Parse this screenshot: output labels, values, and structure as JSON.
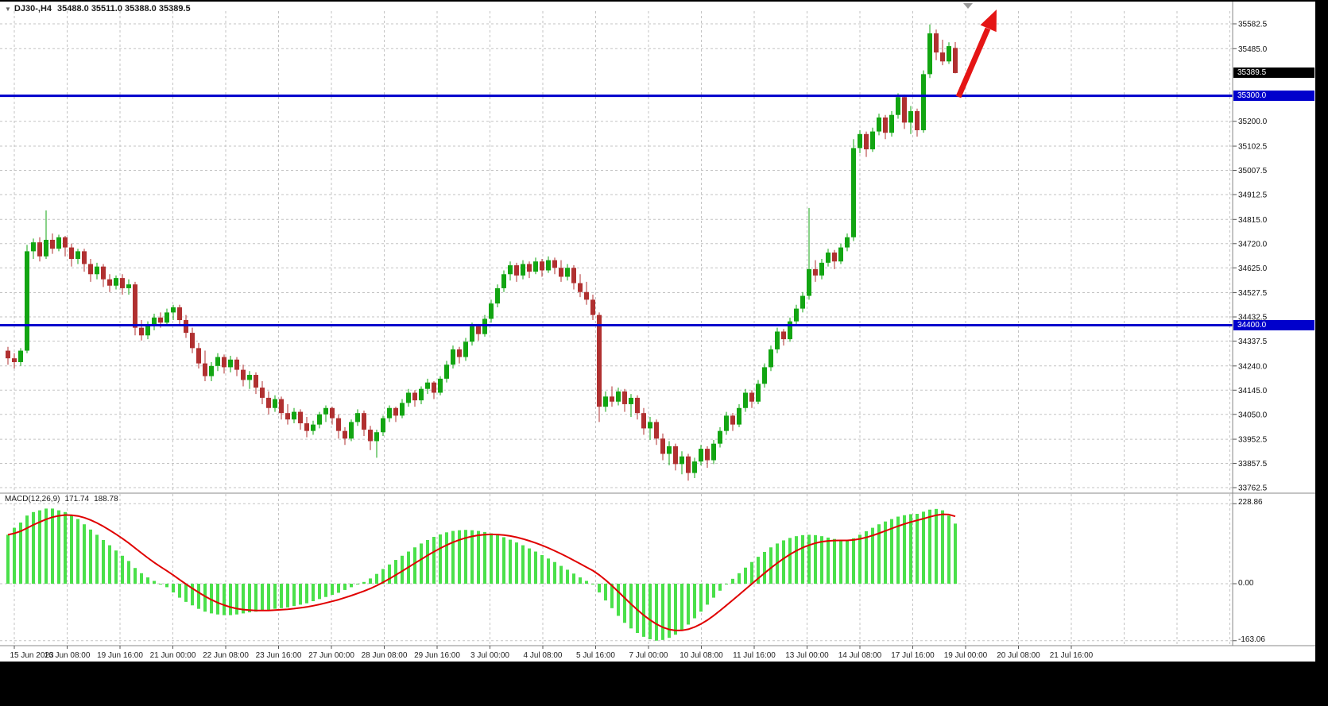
{
  "header": {
    "symbol": "DJ30-,H4",
    "quotes": "35488.0 35511.0 35388.0 35389.5"
  },
  "price_axis": {
    "labels": [
      "35582.5",
      "35485.0",
      "35200.0",
      "35102.5",
      "35007.5",
      "34912.5",
      "34815.0",
      "34720.0",
      "34625.0",
      "34527.5",
      "34432.5",
      "34337.5",
      "34240.0",
      "34145.0",
      "34050.0",
      "33952.5",
      "33857.5",
      "33762.5"
    ],
    "current_price": "35389.5",
    "levels": [
      "35300.0",
      "34400.0"
    ]
  },
  "time_axis": {
    "labels": [
      "15 Jun 2023",
      "16 Jun 08:00",
      "19 Jun 16:00",
      "21 Jun 00:00",
      "22 Jun 08:00",
      "23 Jun 16:00",
      "27 Jun 00:00",
      "28 Jun 08:00",
      "29 Jun 16:00",
      "3 Jul 00:00",
      "4 Jul 08:00",
      "5 Jul 16:00",
      "7 Jul 00:00",
      "10 Jul 08:00",
      "11 Jul 16:00",
      "13 Jul 00:00",
      "14 Jul 08:00",
      "17 Jul 16:00",
      "19 Jul 00:00",
      "20 Jul 08:00",
      "21 Jul 16:00"
    ]
  },
  "macd_panel": {
    "label": "MACD(12,26,9)",
    "macd_value": "171.74",
    "signal_value": "188.78",
    "scale": {
      "top": "228.86",
      "zero": "0.00",
      "bottom": "-163.06"
    }
  },
  "colors": {
    "bull": "#12a512",
    "bear": "#b03030",
    "macd_bar": "#4ae04a",
    "signal": "#e00000",
    "level_line": "#0000cc",
    "grid": "#c3c3c3",
    "arrow": "#e51515",
    "axis_text": "#111111",
    "current_badge_bg": "#000000",
    "level_badge_bg": "#0000cc"
  },
  "chart_data": [
    {
      "type": "candlestick",
      "symbol": "DJ30-",
      "timeframe": "H4",
      "ylim": [
        33762.5,
        35582.5
      ],
      "horizontal_levels": [
        35300.0,
        34400.0
      ],
      "last_ohlc": {
        "open": 35488.0,
        "high": 35511.0,
        "low": 35388.0,
        "close": 35389.5
      },
      "annotations": [
        {
          "type": "arrow",
          "direction": "up-right",
          "color": "red",
          "note": "bullish breakout arrow above 35300 level near last candles"
        }
      ],
      "ohlc": [
        [
          34300,
          34315,
          34245,
          34270
        ],
        [
          34270,
          34290,
          34230,
          34255
        ],
        [
          34255,
          34310,
          34240,
          34300
        ],
        [
          34300,
          34715,
          34290,
          34690
        ],
        [
          34690,
          34740,
          34660,
          34725
        ],
        [
          34725,
          34745,
          34650,
          34670
        ],
        [
          34670,
          34850,
          34660,
          34735
        ],
        [
          34735,
          34760,
          34680,
          34700
        ],
        [
          34700,
          34755,
          34690,
          34745
        ],
        [
          34745,
          34750,
          34670,
          34705
        ],
        [
          34705,
          34720,
          34630,
          34660
        ],
        [
          34660,
          34700,
          34640,
          34690
        ],
        [
          34690,
          34700,
          34610,
          34640
        ],
        [
          34640,
          34660,
          34570,
          34600
        ],
        [
          34600,
          34645,
          34580,
          34630
        ],
        [
          34630,
          34640,
          34550,
          34580
        ],
        [
          34580,
          34600,
          34530,
          34555
        ],
        [
          34555,
          34595,
          34540,
          34585
        ],
        [
          34585,
          34600,
          34520,
          34545
        ],
        [
          34545,
          34580,
          34520,
          34560
        ],
        [
          34560,
          34570,
          34360,
          34390
        ],
        [
          34390,
          34420,
          34340,
          34360
        ],
        [
          34360,
          34415,
          34345,
          34400
        ],
        [
          34400,
          34445,
          34380,
          34430
        ],
        [
          34430,
          34450,
          34390,
          34410
        ],
        [
          34410,
          34465,
          34400,
          34450
        ],
        [
          34450,
          34480,
          34420,
          34470
        ],
        [
          34470,
          34480,
          34400,
          34420
        ],
        [
          34420,
          34440,
          34350,
          34370
        ],
        [
          34370,
          34390,
          34290,
          34310
        ],
        [
          34310,
          34330,
          34230,
          34250
        ],
        [
          34250,
          34300,
          34180,
          34200
        ],
        [
          34200,
          34255,
          34180,
          34240
        ],
        [
          34240,
          34290,
          34220,
          34275
        ],
        [
          34275,
          34285,
          34210,
          34235
        ],
        [
          34235,
          34280,
          34215,
          34265
        ],
        [
          34265,
          34275,
          34200,
          34225
        ],
        [
          34225,
          34245,
          34160,
          34185
        ],
        [
          34185,
          34220,
          34150,
          34205
        ],
        [
          34205,
          34215,
          34130,
          34155
        ],
        [
          34155,
          34180,
          34090,
          34115
        ],
        [
          34115,
          34140,
          34050,
          34075
        ],
        [
          34075,
          34125,
          34060,
          34110
        ],
        [
          34110,
          34120,
          34030,
          34055
        ],
        [
          34055,
          34090,
          34010,
          34030
        ],
        [
          34030,
          34075,
          34015,
          34060
        ],
        [
          34060,
          34070,
          33990,
          34015
        ],
        [
          34015,
          34040,
          33960,
          33985
        ],
        [
          33985,
          34025,
          33970,
          34010
        ],
        [
          34010,
          34060,
          33995,
          34050
        ],
        [
          34050,
          34085,
          34020,
          34075
        ],
        [
          34075,
          34080,
          34010,
          34035
        ],
        [
          34035,
          34050,
          33955,
          33985
        ],
        [
          33985,
          34000,
          33930,
          33955
        ],
        [
          33955,
          34030,
          33945,
          34020
        ],
        [
          34020,
          34070,
          34005,
          34055
        ],
        [
          34055,
          34065,
          33965,
          33990
        ],
        [
          33990,
          34005,
          33910,
          33945
        ],
        [
          33945,
          33990,
          33880,
          33980
        ],
        [
          33980,
          34045,
          33965,
          34035
        ],
        [
          34035,
          34085,
          34020,
          34075
        ],
        [
          34075,
          34080,
          34020,
          34045
        ],
        [
          34045,
          34110,
          34035,
          34095
        ],
        [
          34095,
          34150,
          34080,
          34135
        ],
        [
          34135,
          34145,
          34080,
          34105
        ],
        [
          34105,
          34160,
          34090,
          34150
        ],
        [
          34150,
          34190,
          34130,
          34175
        ],
        [
          34175,
          34180,
          34110,
          34135
        ],
        [
          34135,
          34200,
          34125,
          34190
        ],
        [
          34190,
          34260,
          34175,
          34245
        ],
        [
          34245,
          34320,
          34230,
          34305
        ],
        [
          34305,
          34315,
          34250,
          34275
        ],
        [
          34275,
          34350,
          34260,
          34335
        ],
        [
          34335,
          34410,
          34320,
          34395
        ],
        [
          34395,
          34405,
          34340,
          34365
        ],
        [
          34365,
          34440,
          34355,
          34425
        ],
        [
          34425,
          34500,
          34410,
          34485
        ],
        [
          34485,
          34560,
          34470,
          34545
        ],
        [
          34545,
          34615,
          34530,
          34600
        ],
        [
          34600,
          34650,
          34575,
          34635
        ],
        [
          34635,
          34645,
          34570,
          34595
        ],
        [
          34595,
          34655,
          34580,
          34640
        ],
        [
          34640,
          34650,
          34585,
          34610
        ],
        [
          34610,
          34665,
          34600,
          34650
        ],
        [
          34650,
          34660,
          34590,
          34615
        ],
        [
          34615,
          34670,
          34605,
          34655
        ],
        [
          34655,
          34665,
          34600,
          34625
        ],
        [
          34625,
          34655,
          34570,
          34590
        ],
        [
          34590,
          34640,
          34575,
          34625
        ],
        [
          34625,
          34635,
          34540,
          34565
        ],
        [
          34565,
          34600,
          34510,
          34530
        ],
        [
          34530,
          34570,
          34480,
          34500
        ],
        [
          34500,
          34520,
          34420,
          34440
        ],
        [
          34440,
          34450,
          34020,
          34080
        ],
        [
          34080,
          34140,
          34060,
          34120
        ],
        [
          34120,
          34160,
          34080,
          34100
        ],
        [
          34100,
          34155,
          34085,
          34140
        ],
        [
          34140,
          34150,
          34060,
          34090
        ],
        [
          34090,
          34130,
          34040,
          34115
        ],
        [
          34115,
          34125,
          34030,
          34055
        ],
        [
          34055,
          34075,
          33970,
          33995
        ],
        [
          33995,
          34040,
          33950,
          34020
        ],
        [
          34020,
          34030,
          33930,
          33955
        ],
        [
          33955,
          33975,
          33870,
          33895
        ],
        [
          33895,
          33945,
          33850,
          33925
        ],
        [
          33925,
          33935,
          33830,
          33855
        ],
        [
          33855,
          33905,
          33815,
          33885
        ],
        [
          33885,
          33895,
          33790,
          33820
        ],
        [
          33820,
          33880,
          33800,
          33865
        ],
        [
          33865,
          33930,
          33850,
          33915
        ],
        [
          33915,
          33925,
          33840,
          33870
        ],
        [
          33870,
          33950,
          33855,
          33935
        ],
        [
          33935,
          34000,
          33920,
          33985
        ],
        [
          33985,
          34060,
          33970,
          34045
        ],
        [
          34045,
          34055,
          33985,
          34010
        ],
        [
          34010,
          34090,
          34000,
          34075
        ],
        [
          34075,
          34150,
          34060,
          34135
        ],
        [
          34135,
          34145,
          34075,
          34100
        ],
        [
          34100,
          34185,
          34090,
          34170
        ],
        [
          34170,
          34250,
          34155,
          34235
        ],
        [
          34235,
          34320,
          34220,
          34305
        ],
        [
          34305,
          34390,
          34290,
          34375
        ],
        [
          34375,
          34385,
          34320,
          34345
        ],
        [
          34345,
          34430,
          34335,
          34415
        ],
        [
          34415,
          34480,
          34400,
          34465
        ],
        [
          34465,
          34530,
          34450,
          34515
        ],
        [
          34515,
          34860,
          34500,
          34620
        ],
        [
          34620,
          34655,
          34570,
          34595
        ],
        [
          34595,
          34660,
          34580,
          34645
        ],
        [
          34645,
          34700,
          34630,
          34685
        ],
        [
          34685,
          34695,
          34620,
          34650
        ],
        [
          34650,
          34720,
          34640,
          34705
        ],
        [
          34705,
          34760,
          34690,
          34745
        ],
        [
          34745,
          35130,
          34730,
          35095
        ],
        [
          35095,
          35165,
          35075,
          35150
        ],
        [
          35150,
          35160,
          35060,
          35090
        ],
        [
          35090,
          35175,
          35080,
          35160
        ],
        [
          35160,
          35230,
          35145,
          35215
        ],
        [
          35215,
          35225,
          35130,
          35155
        ],
        [
          35155,
          35240,
          35140,
          35225
        ],
        [
          35225,
          35310,
          35210,
          35295
        ],
        [
          35295,
          35305,
          35170,
          35195
        ],
        [
          35195,
          35260,
          35150,
          35240
        ],
        [
          35240,
          35250,
          35140,
          35165
        ],
        [
          35165,
          35400,
          35155,
          35385
        ],
        [
          35385,
          35580,
          35370,
          35545
        ],
        [
          35545,
          35560,
          35440,
          35470
        ],
        [
          35470,
          35520,
          35420,
          35435
        ],
        [
          35435,
          35510,
          35425,
          35495
        ],
        [
          35488,
          35511,
          35388,
          35389.5
        ]
      ]
    },
    {
      "type": "bar",
      "name": "MACD(12,26,9) histogram",
      "ylim": [
        -163.06,
        228.86
      ],
      "current_macd": 171.74,
      "current_signal": 188.78,
      "signal_line": "red EMA9 of MACD values",
      "values": [
        140,
        160,
        175,
        195,
        205,
        210,
        215,
        215,
        210,
        205,
        195,
        185,
        170,
        155,
        140,
        125,
        110,
        95,
        80,
        65,
        45,
        30,
        18,
        8,
        0,
        -10,
        -25,
        -40,
        -52,
        -62,
        -72,
        -80,
        -85,
        -88,
        -90,
        -90,
        -88,
        -85,
        -82,
        -80,
        -78,
        -76,
        -72,
        -70,
        -68,
        -64,
        -60,
        -56,
        -50,
        -44,
        -38,
        -32,
        -26,
        -18,
        -10,
        -2,
        5,
        15,
        28,
        42,
        55,
        68,
        80,
        92,
        104,
        115,
        125,
        134,
        141,
        147,
        151,
        153,
        154,
        153,
        151,
        148,
        144,
        139,
        133,
        126,
        118,
        110,
        101,
        92,
        82,
        72,
        62,
        51,
        40,
        29,
        18,
        8,
        -2,
        -25,
        -48,
        -70,
        -92,
        -112,
        -128,
        -141,
        -152,
        -159,
        -163,
        -161,
        -155,
        -146,
        -133,
        -117,
        -99,
        -80,
        -60,
        -40,
        -20,
        -2,
        14,
        30,
        46,
        62,
        77,
        91,
        104,
        115,
        124,
        131,
        136,
        139,
        140,
        139,
        136,
        132,
        128,
        125,
        124,
        130,
        140,
        150,
        160,
        170,
        178,
        185,
        192,
        196,
        199,
        200,
        206,
        212,
        214,
        210,
        195,
        172
      ]
    }
  ]
}
